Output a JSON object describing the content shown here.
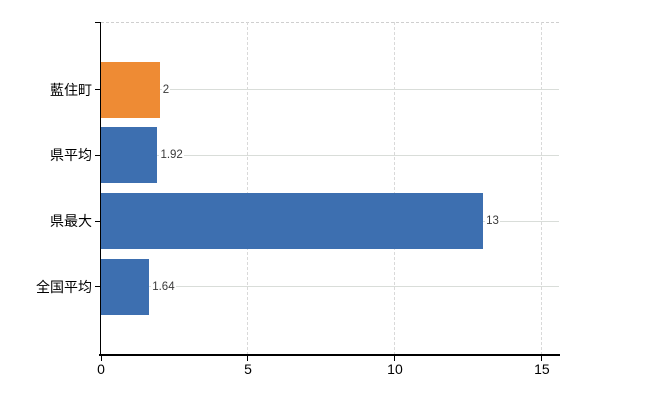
{
  "chart_data": {
    "type": "bar",
    "orientation": "horizontal",
    "title": "",
    "categories": [
      "藍住町",
      "県平均",
      "県最大",
      "全国平均"
    ],
    "values": [
      2,
      1.92,
      13,
      1.64
    ],
    "value_labels": [
      "2",
      "1.92",
      "13",
      "1.64"
    ],
    "bar_colors": [
      "#EE8B34",
      "#3D6FB0",
      "#3D6FB0",
      "#3D6FB0"
    ],
    "x_ticks": [
      0,
      5,
      10,
      15
    ],
    "xlim": [
      0,
      15.58
    ],
    "xlabel": "",
    "ylabel": "",
    "legend": "none",
    "grid": {
      "vertical": "dashed",
      "horizontal": "solid"
    },
    "colors": {
      "highlight_bar": "#EE8B34",
      "default_bar": "#3D6FB0",
      "gridline": "#D9D9D9",
      "axis": "#000000",
      "value_label_text": "#3A3A3A",
      "background": "#FFFFFF"
    }
  }
}
